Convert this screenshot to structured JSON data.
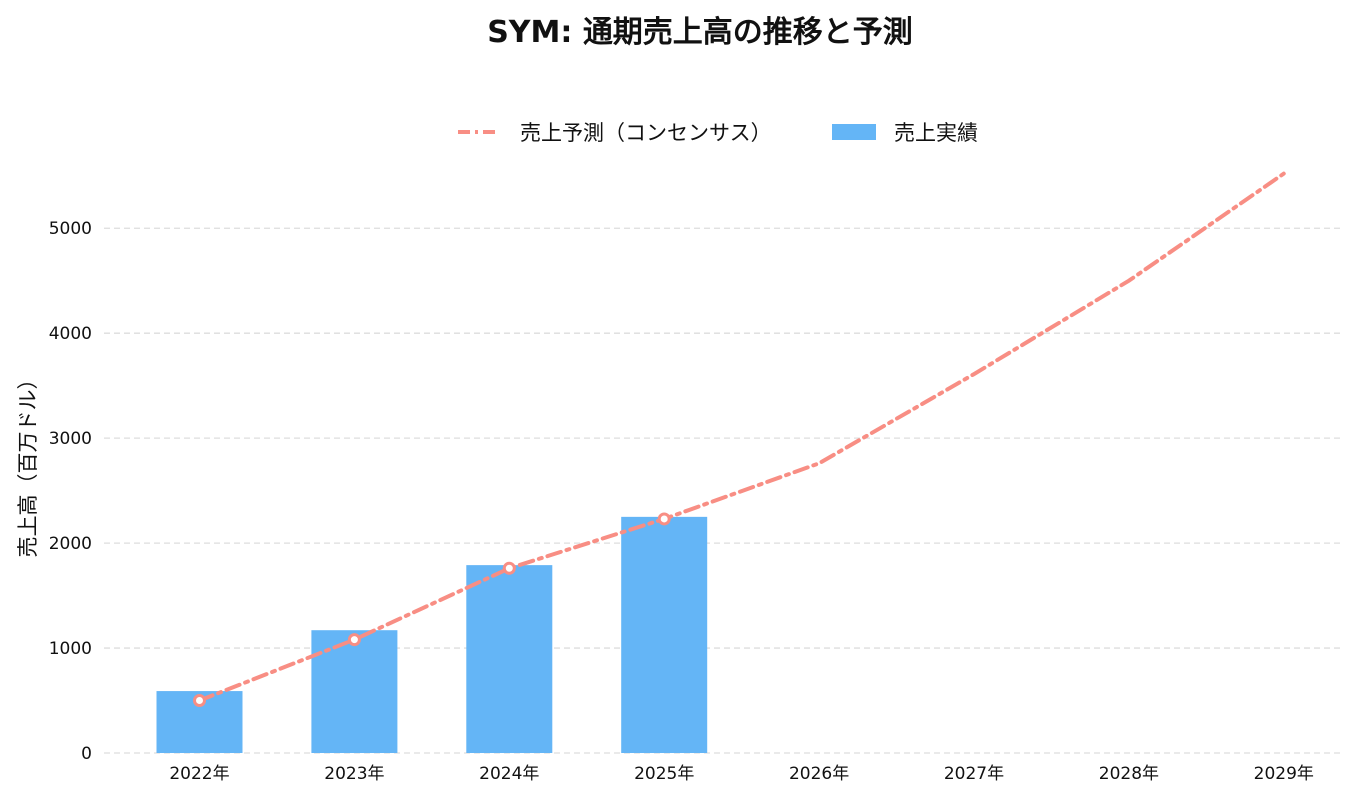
{
  "chart_data": {
    "type": "bar",
    "title": "SYM: 通期売上高の推移と予測",
    "xlabel": "",
    "ylabel": "売上高（百万ドル）",
    "categories": [
      "2022年",
      "2023年",
      "2024年",
      "2025年",
      "2026年",
      "2027年",
      "2028年",
      "2029年"
    ],
    "ylim": [
      0,
      5650
    ],
    "yticks": [
      0,
      1000,
      2000,
      3000,
      4000,
      5000
    ],
    "grid": "y-dashed",
    "legend_position": "top-center",
    "series": [
      {
        "name": "売上予測（コンセンサス）",
        "type": "line",
        "style": "dash-dot",
        "color": "#f88e84",
        "marker": "open-circle-on-actuals",
        "values": [
          500,
          1080,
          1760,
          2230,
          2760,
          3610,
          4500,
          5520
        ]
      },
      {
        "name": "売上実績",
        "type": "bar",
        "color": "#64b5f6",
        "values": [
          590,
          1170,
          1790,
          2250,
          null,
          null,
          null,
          null
        ]
      }
    ]
  }
}
